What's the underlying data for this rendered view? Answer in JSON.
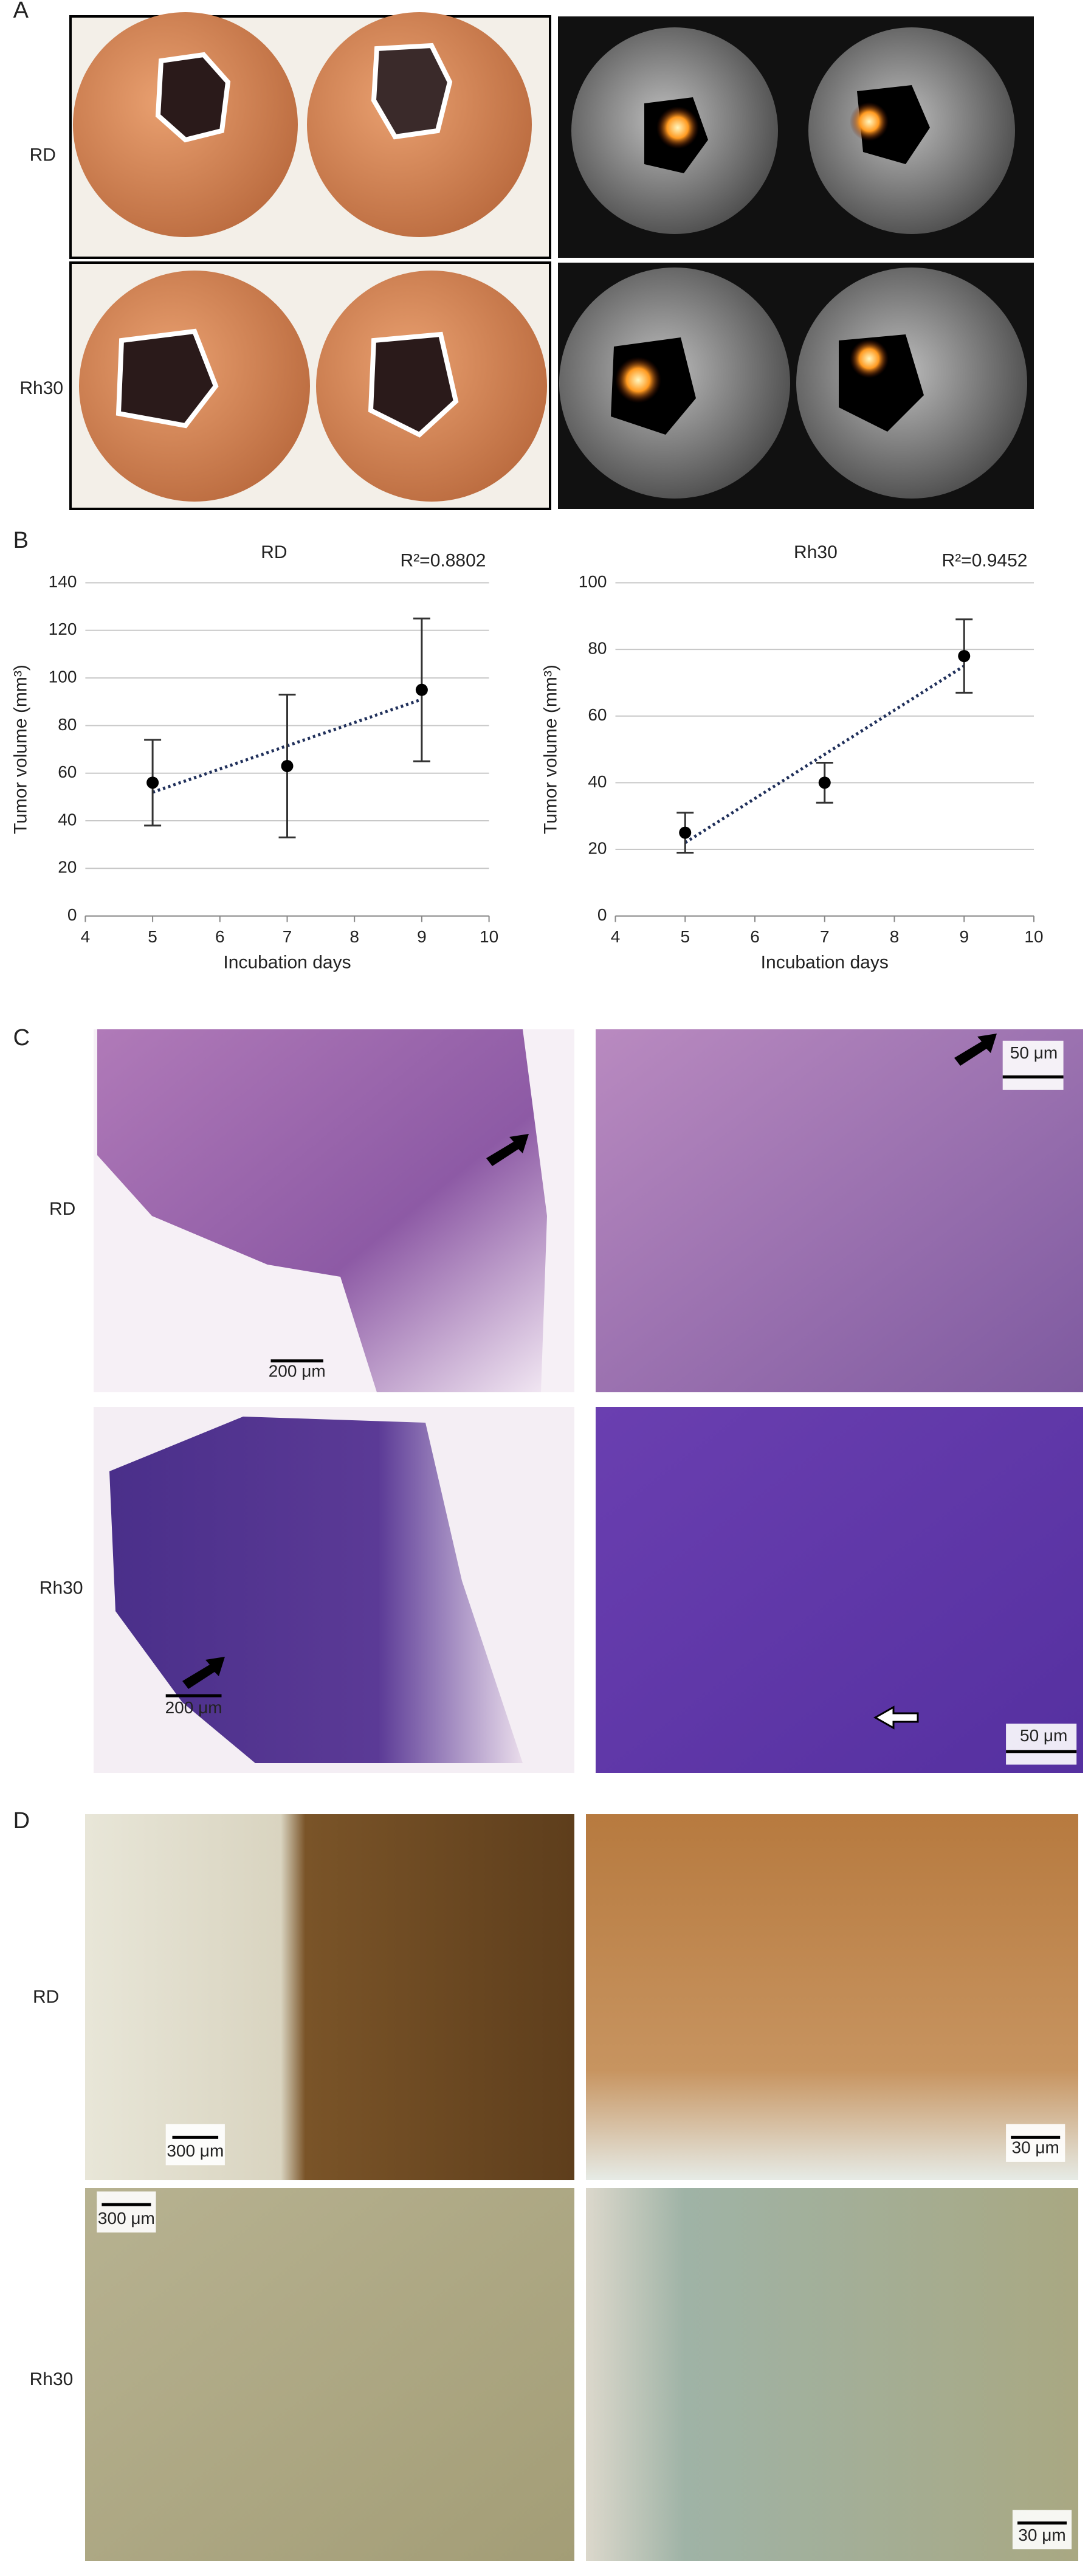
{
  "panel_a": {
    "label": "A",
    "rows": [
      "RD",
      "Rh30"
    ]
  },
  "panel_b": {
    "label": "B"
  },
  "chart_data": [
    {
      "type": "scatter",
      "title": "RD",
      "annotation": "R²=0.8802",
      "x_label": "Incubation days",
      "y_label": "Tumor volume (mm³)",
      "x": [
        5,
        7,
        9
      ],
      "values": [
        56,
        63,
        95
      ],
      "errors": [
        18,
        30,
        30
      ],
      "color": "#000000",
      "trendline": {
        "x": [
          5,
          9
        ],
        "values": [
          52,
          91
        ],
        "color": "#1f2f5a"
      },
      "xlim": [
        4,
        10
      ],
      "xticks": [
        4,
        5,
        6,
        7,
        8,
        9,
        10
      ],
      "ylim": [
        0,
        140
      ],
      "yticks": [
        0,
        20,
        40,
        60,
        80,
        100,
        120,
        140
      ],
      "grid": true
    },
    {
      "type": "scatter",
      "title": "Rh30",
      "annotation": "R²=0.9452",
      "x_label": "Incubation days",
      "y_label": "Tumor volume (mm³)",
      "x": [
        5,
        7,
        9
      ],
      "values": [
        25,
        40,
        78
      ],
      "errors": [
        6,
        6,
        11
      ],
      "color": "#000000",
      "trendline": {
        "x": [
          5,
          9
        ],
        "values": [
          22,
          75
        ],
        "color": "#1f2f5a"
      },
      "xlim": [
        4,
        10
      ],
      "xticks": [
        4,
        5,
        6,
        7,
        8,
        9,
        10
      ],
      "ylim": [
        0,
        100
      ],
      "yticks": [
        0,
        20,
        40,
        60,
        80,
        100
      ],
      "grid": true
    }
  ],
  "panel_c": {
    "label": "C",
    "rows": [
      "RD",
      "Rh30"
    ],
    "scale_bars": [
      "200 μm",
      "50 μm",
      "200 μm",
      "50 μm"
    ]
  },
  "panel_d": {
    "label": "D",
    "rows": [
      "RD",
      "Rh30"
    ],
    "scale_bars": [
      "300 μm",
      "30 μm",
      "300 μm",
      "30 μm"
    ]
  }
}
